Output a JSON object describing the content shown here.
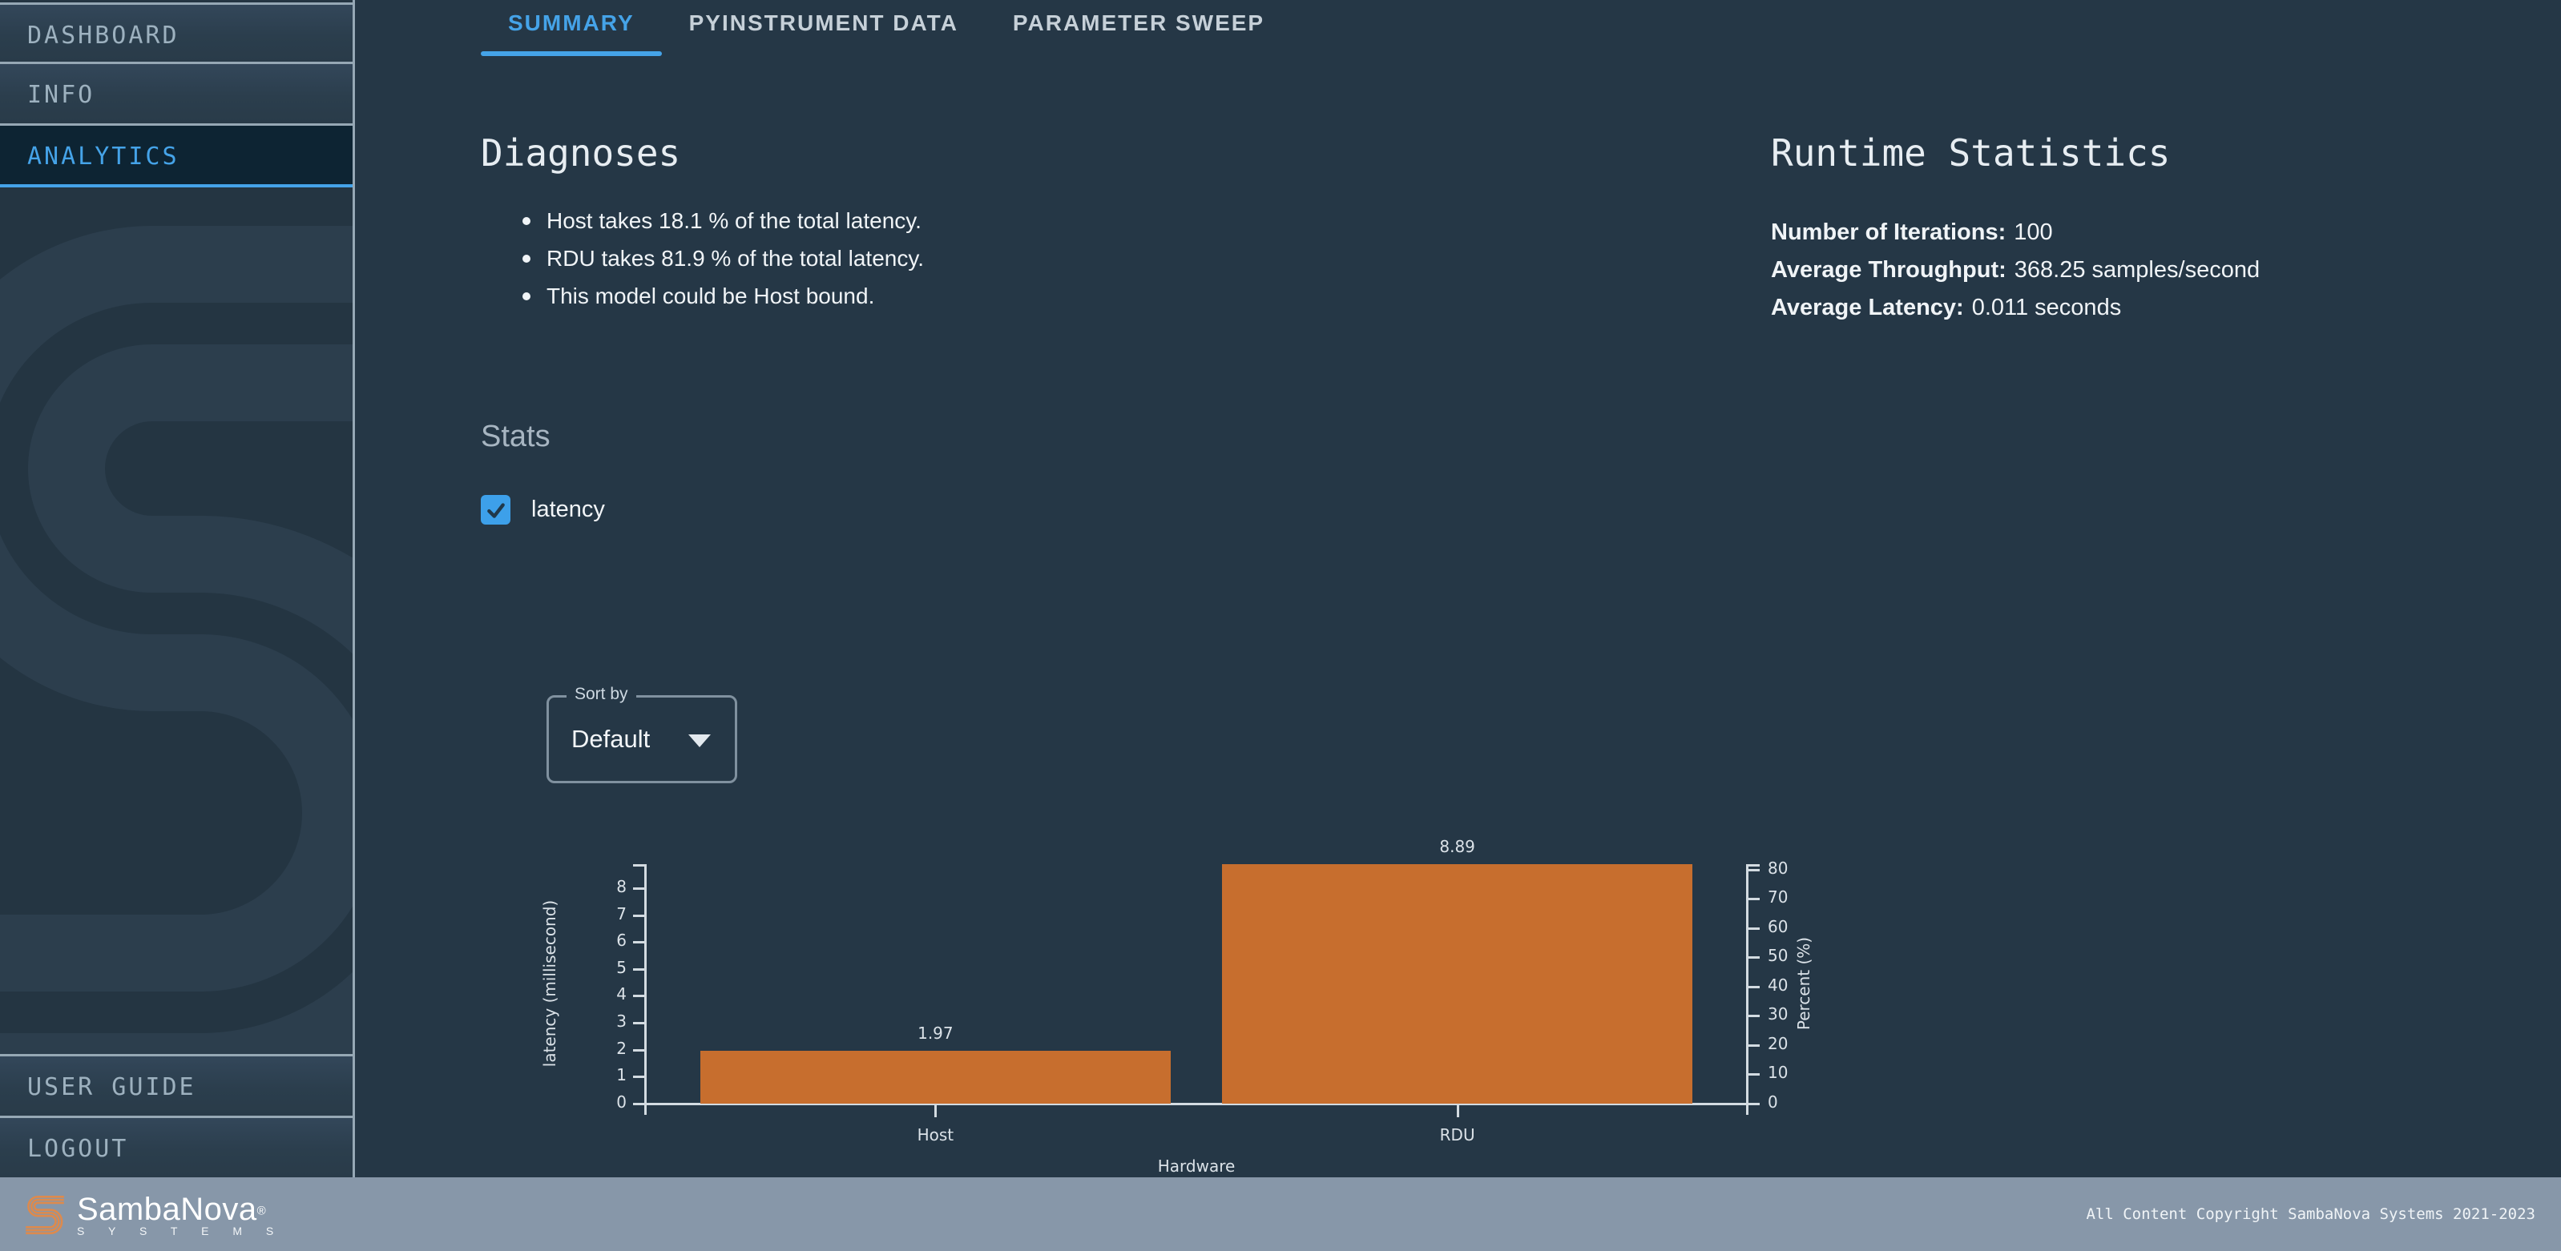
{
  "colors": {
    "bg": "#253746",
    "accent": "#45a3e8",
    "bar": "#c76e2e",
    "footer_bg": "#8797a9"
  },
  "sidebar": {
    "items": [
      {
        "label": "DASHBOARD",
        "active": false
      },
      {
        "label": "INFO",
        "active": false
      },
      {
        "label": "ANALYTICS",
        "active": true
      }
    ],
    "bottom_items": [
      {
        "label": "USER GUIDE"
      },
      {
        "label": "LOGOUT"
      }
    ]
  },
  "tabs": [
    {
      "label": "SUMMARY",
      "active": true
    },
    {
      "label": "PYINSTRUMENT DATA",
      "active": false
    },
    {
      "label": "PARAMETER SWEEP",
      "active": false
    }
  ],
  "diagnoses": {
    "title": "Diagnoses",
    "bullets": [
      "Host takes 18.1 % of the total latency.",
      "RDU takes 81.9 % of the total latency.",
      "This model could be Host bound."
    ]
  },
  "runtime_stats": {
    "title": "Runtime Statistics",
    "stats": [
      {
        "label": "Number of Iterations:",
        "value": "100"
      },
      {
        "label": "Average Throughput:",
        "value": "368.25 samples/second"
      },
      {
        "label": "Average Latency:",
        "value": "0.011 seconds"
      }
    ]
  },
  "stats_section": {
    "title": "Stats",
    "checkbox_label": "latency",
    "checked": true
  },
  "sort_by": {
    "label": "Sort by",
    "value": "Default"
  },
  "chart_data": {
    "type": "bar",
    "categories": [
      "Host",
      "RDU"
    ],
    "values": [
      1.97,
      8.89
    ],
    "bar_labels": [
      "1.97",
      "8.89"
    ],
    "percent_values": [
      18.1,
      81.9
    ],
    "title": "",
    "xlabel": "Hardware",
    "ylabel_left": "latency (millisecond)",
    "ylabel_right": "Percent (%)",
    "left_axis": {
      "min": 0,
      "max": 8.89,
      "ticks": [
        0,
        1,
        2,
        3,
        4,
        5,
        6,
        7,
        8
      ]
    },
    "right_axis": {
      "min": 0,
      "max": 81.9,
      "ticks": [
        0,
        10,
        20,
        30,
        40,
        50,
        60,
        70,
        80
      ]
    },
    "bar_color": "#c76e2e",
    "grid": false,
    "legend": "none"
  },
  "footer": {
    "brand": "SambaNova",
    "reg_mark": "®",
    "brand_sub": "S Y S T E M S",
    "copyright": "All Content Copyright SambaNova Systems 2021-2023"
  }
}
